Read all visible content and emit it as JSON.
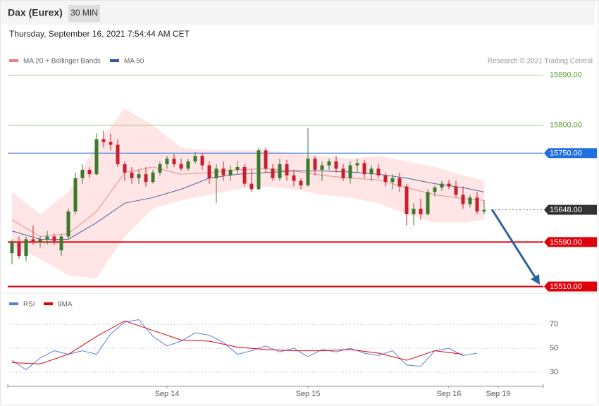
{
  "chart_data": {
    "type": "candlestick",
    "title": "Dax (Eurex)",
    "timeframe": "30 MIN",
    "subtitle": "Thursday, September 16, 2021 7:54:44 AM CET",
    "source": "Research © 2021 Trading Central",
    "xlim": [
      -0.6,
      75.4
    ],
    "xticks": [
      {
        "value": 22,
        "label": "Sep 14"
      },
      {
        "value": 42,
        "label": "Sep 15"
      },
      {
        "value": 62,
        "label": "Sep 16"
      },
      {
        "value": 69,
        "label": "Sep 19"
      }
    ],
    "ylim": [
      15503,
      15905
    ],
    "up_color": "#3b7a2a",
    "down_color": "#c8202a",
    "candles": [
      [
        15570,
        15595,
        15550,
        15590
      ],
      [
        15590,
        15600,
        15560,
        15565
      ],
      [
        15565,
        15600,
        15555,
        15595
      ],
      [
        15595,
        15620,
        15585,
        15590
      ],
      [
        15590,
        15600,
        15580,
        15595
      ],
      [
        15595,
        15610,
        15585,
        15600
      ],
      [
        15600,
        15605,
        15585,
        15592
      ],
      [
        15575,
        15605,
        15565,
        15600
      ],
      [
        15600,
        15650,
        15595,
        15645
      ],
      [
        15645,
        15715,
        15640,
        15705
      ],
      [
        15705,
        15730,
        15695,
        15720
      ],
      [
        15720,
        15725,
        15705,
        15712
      ],
      [
        15712,
        15785,
        15710,
        15775
      ],
      [
        15775,
        15790,
        15760,
        15770
      ],
      [
        15770,
        15785,
        15755,
        15765
      ],
      [
        15765,
        15775,
        15725,
        15730
      ],
      [
        15730,
        15735,
        15700,
        15715
      ],
      [
        15715,
        15725,
        15695,
        15705
      ],
      [
        15705,
        15720,
        15695,
        15712
      ],
      [
        15712,
        15725,
        15690,
        15698
      ],
      [
        15698,
        15720,
        15695,
        15715
      ],
      [
        15715,
        15735,
        15710,
        15730
      ],
      [
        15730,
        15745,
        15722,
        15740
      ],
      [
        15740,
        15748,
        15725,
        15730
      ],
      [
        15730,
        15740,
        15718,
        15722
      ],
      [
        15722,
        15740,
        15718,
        15735
      ],
      [
        15735,
        15752,
        15730,
        15745
      ],
      [
        15745,
        15750,
        15720,
        15728
      ],
      [
        15728,
        15735,
        15695,
        15705
      ],
      [
        15705,
        15730,
        15660,
        15722
      ],
      [
        15722,
        15735,
        15700,
        15710
      ],
      [
        15710,
        15728,
        15700,
        15720
      ],
      [
        15720,
        15735,
        15712,
        15725
      ],
      [
        15725,
        15730,
        15690,
        15695
      ],
      [
        15695,
        15720,
        15680,
        15685
      ],
      [
        15685,
        15760,
        15683,
        15755
      ],
      [
        15755,
        15760,
        15715,
        15722
      ],
      [
        15722,
        15730,
        15700,
        15705
      ],
      [
        15705,
        15740,
        15700,
        15730
      ],
      [
        15730,
        15738,
        15700,
        15710
      ],
      [
        15710,
        15720,
        15690,
        15700
      ],
      [
        15700,
        15705,
        15685,
        15692
      ],
      [
        15692,
        15795,
        15690,
        15740
      ],
      [
        15740,
        15745,
        15710,
        15720
      ],
      [
        15720,
        15735,
        15700,
        15728
      ],
      [
        15728,
        15740,
        15720,
        15735
      ],
      [
        15735,
        15745,
        15715,
        15722
      ],
      [
        15722,
        15730,
        15700,
        15705
      ],
      [
        15705,
        15735,
        15695,
        15728
      ],
      [
        15728,
        15740,
        15715,
        15732
      ],
      [
        15732,
        15738,
        15705,
        15712
      ],
      [
        15712,
        15728,
        15700,
        15722
      ],
      [
        15722,
        15730,
        15705,
        15710
      ],
      [
        15710,
        15715,
        15690,
        15698
      ],
      [
        15698,
        15712,
        15685,
        15705
      ],
      [
        15705,
        15715,
        15680,
        15690
      ],
      [
        15690,
        15695,
        15620,
        15640
      ],
      [
        15640,
        15660,
        15620,
        15650
      ],
      [
        15650,
        15668,
        15630,
        15640
      ],
      [
        15640,
        15685,
        15638,
        15680
      ],
      [
        15680,
        15692,
        15672,
        15688
      ],
      [
        15688,
        15700,
        15682,
        15695
      ],
      [
        15695,
        15702,
        15685,
        15690
      ],
      [
        15690,
        15700,
        15670,
        15675
      ],
      [
        15675,
        15690,
        15650,
        15658
      ],
      [
        15658,
        15675,
        15652,
        15670
      ],
      [
        15670,
        15680,
        15640,
        15645
      ],
      [
        15645,
        15665,
        15640,
        15648
      ]
    ],
    "indicators": {
      "x": [
        0,
        4,
        8,
        12,
        16,
        20,
        24,
        28,
        32,
        36,
        40,
        44,
        48,
        52,
        56,
        60,
        64,
        67
      ],
      "band_color": "#ffdede",
      "series": [
        {
          "name": "MA 20 + Bollinger Bands",
          "color": "#f08080",
          "values": [
            15630,
            15600,
            15605,
            15645,
            15715,
            15725,
            15712,
            15715,
            15720,
            15722,
            15718,
            15710,
            15705,
            15702,
            15688,
            15675,
            15668,
            15665
          ],
          "upper": [
            15680,
            15640,
            15680,
            15765,
            15830,
            15800,
            15760,
            15755,
            15755,
            15755,
            15750,
            15745,
            15740,
            15745,
            15735,
            15725,
            15710,
            15700
          ],
          "lower": [
            15580,
            15560,
            15530,
            15525,
            15600,
            15650,
            15665,
            15675,
            15685,
            15690,
            15685,
            15675,
            15670,
            15660,
            15640,
            15625,
            15625,
            15630
          ]
        },
        {
          "name": "MA 50",
          "color": "#2e5a99",
          "values": [
            15610,
            15595,
            15595,
            15625,
            15660,
            15670,
            15685,
            15705,
            15712,
            15715,
            15718,
            15718,
            15716,
            15712,
            15705,
            15695,
            15688,
            15680
          ]
        }
      ]
    },
    "levels": [
      {
        "value": 15890,
        "label": "15890.00",
        "color": "#5aa02c",
        "style": "thin"
      },
      {
        "value": 15800,
        "label": "15800.00",
        "color": "#5aa02c",
        "style": "thin"
      },
      {
        "value": 15750,
        "label": "15750.00",
        "color": "#1f6fe0",
        "style": "box"
      },
      {
        "value": 15648,
        "label": "15648.00",
        "color": "#333333",
        "style": "dotted"
      },
      {
        "value": 15590,
        "label": "15590.00",
        "color": "#e0000a",
        "style": "thick"
      },
      {
        "value": 15510,
        "label": "15510.00",
        "color": "#e0000a",
        "style": "thick"
      }
    ],
    "rsi": {
      "ylim": [
        20,
        82
      ],
      "yticks": [
        70,
        50,
        30
      ],
      "series": [
        {
          "name": "RSI",
          "color": "#5b7fde",
          "x": [
            0,
            2,
            4,
            6,
            8,
            10,
            12,
            14,
            16,
            18,
            20,
            22,
            24,
            26,
            28,
            30,
            32,
            34,
            36,
            38,
            40,
            42,
            44,
            46,
            48,
            50,
            52,
            54,
            56,
            58,
            60,
            62,
            64,
            66
          ],
          "values": [
            40,
            32,
            42,
            48,
            45,
            48,
            45,
            62,
            72,
            74,
            60,
            52,
            56,
            63,
            61,
            55,
            45,
            48,
            52,
            47,
            50,
            43,
            49,
            47,
            50,
            46,
            44,
            48,
            36,
            35,
            48,
            50,
            44,
            46
          ]
        },
        {
          "name": "9MA",
          "color": "#e0000a",
          "x": [
            0,
            4,
            8,
            12,
            16,
            20,
            24,
            28,
            32,
            36,
            40,
            44,
            48,
            52,
            56,
            60,
            64
          ],
          "values": [
            38,
            37,
            45,
            60,
            73,
            65,
            57,
            56,
            51,
            49,
            48,
            48,
            49,
            46,
            40,
            48,
            45
          ]
        }
      ]
    }
  }
}
